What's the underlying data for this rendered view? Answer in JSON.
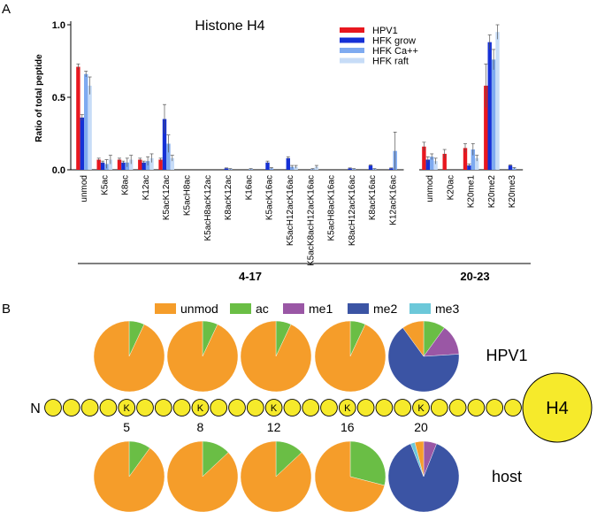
{
  "panel_a": {
    "letter": "A",
    "chart_data": {
      "type": "bar",
      "title": "Histone H4",
      "xlabel": "",
      "ylabel": "Ratio of total peptide",
      "ylim": [
        0,
        1.0
      ],
      "y_ticks": [
        "0.0",
        "0.5",
        "1.0"
      ],
      "legend_position": "top-right",
      "categories": [
        "unmod",
        "K5ac",
        "K8ac",
        "K12ac",
        "K5acK12ac",
        "K5acH8ac",
        "K5acH8acK12ac",
        "K8acK12ac",
        "K16ac",
        "K5acK16ac",
        "K5acH12acK16ac",
        "K5acK8acH12acK16ac",
        "K5acH8acK16ac",
        "K8acH12acK16ac",
        "K8acK16ac",
        "K12acK16ac",
        "unmod",
        "K20ac",
        "K20me1",
        "K20me2",
        "K20me3"
      ],
      "groups": [
        {
          "label": "4-17",
          "from": 0,
          "to": 15
        },
        {
          "label": "20-23",
          "from": 16,
          "to": 20
        }
      ],
      "series": [
        {
          "name": "HPV1",
          "color": "#e8171f",
          "values": [
            0.71,
            0.07,
            0.07,
            0.07,
            0.07,
            0.0,
            0.0,
            0.0,
            0.0,
            0.0,
            0.0,
            0.0,
            0.0,
            0.0,
            0.0,
            0.0,
            0.16,
            0.11,
            0.15,
            0.58,
            0.0
          ],
          "errors": [
            0.02,
            0.01,
            0.01,
            0.01,
            0.01,
            0,
            0,
            0,
            0,
            0,
            0,
            0,
            0,
            0,
            0,
            0,
            0.03,
            0.03,
            0.03,
            0.15,
            0
          ]
        },
        {
          "name": "HFK grow",
          "color": "#1530d6",
          "values": [
            0.36,
            0.05,
            0.05,
            0.05,
            0.35,
            0.0,
            0.0,
            0.01,
            0.0,
            0.05,
            0.08,
            0.0,
            0.0,
            0.01,
            0.03,
            0.01,
            0.07,
            0.0,
            0.03,
            0.88,
            0.03
          ],
          "errors": [
            0.02,
            0.01,
            0.01,
            0.01,
            0.1,
            0,
            0,
            0.003,
            0,
            0.01,
            0.01,
            0,
            0,
            0.003,
            0.005,
            0.003,
            0.02,
            0,
            0.01,
            0.05,
            0.005
          ]
        },
        {
          "name": "HFK  Ca++",
          "color": "#7eaaf0",
          "values": [
            0.66,
            0.04,
            0.05,
            0.06,
            0.18,
            0.0,
            0.0,
            0.005,
            0.005,
            0.01,
            0.02,
            0.005,
            0.0,
            0.005,
            0.005,
            0.13,
            0.09,
            0.0,
            0.14,
            0.76,
            0.01
          ],
          "errors": [
            0.02,
            0.03,
            0.03,
            0.03,
            0.06,
            0,
            0,
            0.003,
            0.003,
            0.005,
            0.01,
            0.003,
            0,
            0.003,
            0.003,
            0.13,
            0.02,
            0,
            0.04,
            0.07,
            0.005
          ]
        },
        {
          "name": "HFK raft",
          "color": "#c7dcf7",
          "values": [
            0.58,
            0.07,
            0.07,
            0.08,
            0.08,
            0.0,
            0.0,
            0.0,
            0.0,
            0.0,
            0.02,
            0.02,
            0.0,
            0.0,
            0.0,
            0.0,
            0.06,
            0.0,
            0.08,
            0.95,
            0.0
          ],
          "errors": [
            0.06,
            0.03,
            0.03,
            0.03,
            0.02,
            0,
            0,
            0,
            0,
            0,
            0.01,
            0.01,
            0,
            0,
            0,
            0,
            0.02,
            0,
            0.02,
            0.05,
            0
          ]
        }
      ]
    }
  },
  "panel_b": {
    "letter": "B",
    "chart_data": {
      "type": "pie",
      "legend": [
        {
          "label": "unmod",
          "color": "#f59d2a"
        },
        {
          "label": "ac",
          "color": "#6abe45"
        },
        {
          "label": "me1",
          "color": "#9a57a5"
        },
        {
          "label": "me2",
          "color": "#3b54a4"
        },
        {
          "label": "me3",
          "color": "#6cc8d9"
        }
      ],
      "rows": [
        {
          "label": "HPV1",
          "color": "#e8171f",
          "pies": [
            {
              "site": "5",
              "slices": [
                0.93,
                0.07,
                0,
                0,
                0
              ]
            },
            {
              "site": "8",
              "slices": [
                0.93,
                0.07,
                0,
                0,
                0
              ]
            },
            {
              "site": "12",
              "slices": [
                0.93,
                0.07,
                0,
                0,
                0
              ]
            },
            {
              "site": "16",
              "slices": [
                0.93,
                0.07,
                0,
                0,
                0
              ]
            },
            {
              "site": "20",
              "slices": [
                0.1,
                0.1,
                0.14,
                0.66,
                0
              ]
            }
          ]
        },
        {
          "label": "host",
          "color": "#1a2fb0",
          "pies": [
            {
              "site": "5",
              "slices": [
                0.9,
                0.1,
                0,
                0,
                0
              ]
            },
            {
              "site": "8",
              "slices": [
                0.87,
                0.13,
                0,
                0,
                0
              ]
            },
            {
              "site": "12",
              "slices": [
                0.87,
                0.13,
                0,
                0,
                0
              ]
            },
            {
              "site": "16",
              "slices": [
                0.71,
                0.29,
                0,
                0,
                0
              ]
            },
            {
              "site": "20",
              "slices": [
                0.04,
                0.0,
                0.06,
                0.88,
                0.02
              ]
            }
          ]
        }
      ]
    },
    "chain": {
      "n_label": "N",
      "end_label": "H4",
      "residue_letter": "K",
      "sites": [
        "5",
        "8",
        "12",
        "16",
        "20"
      ],
      "bead_color": "#f6ea2b",
      "bead_count": 34
    }
  }
}
